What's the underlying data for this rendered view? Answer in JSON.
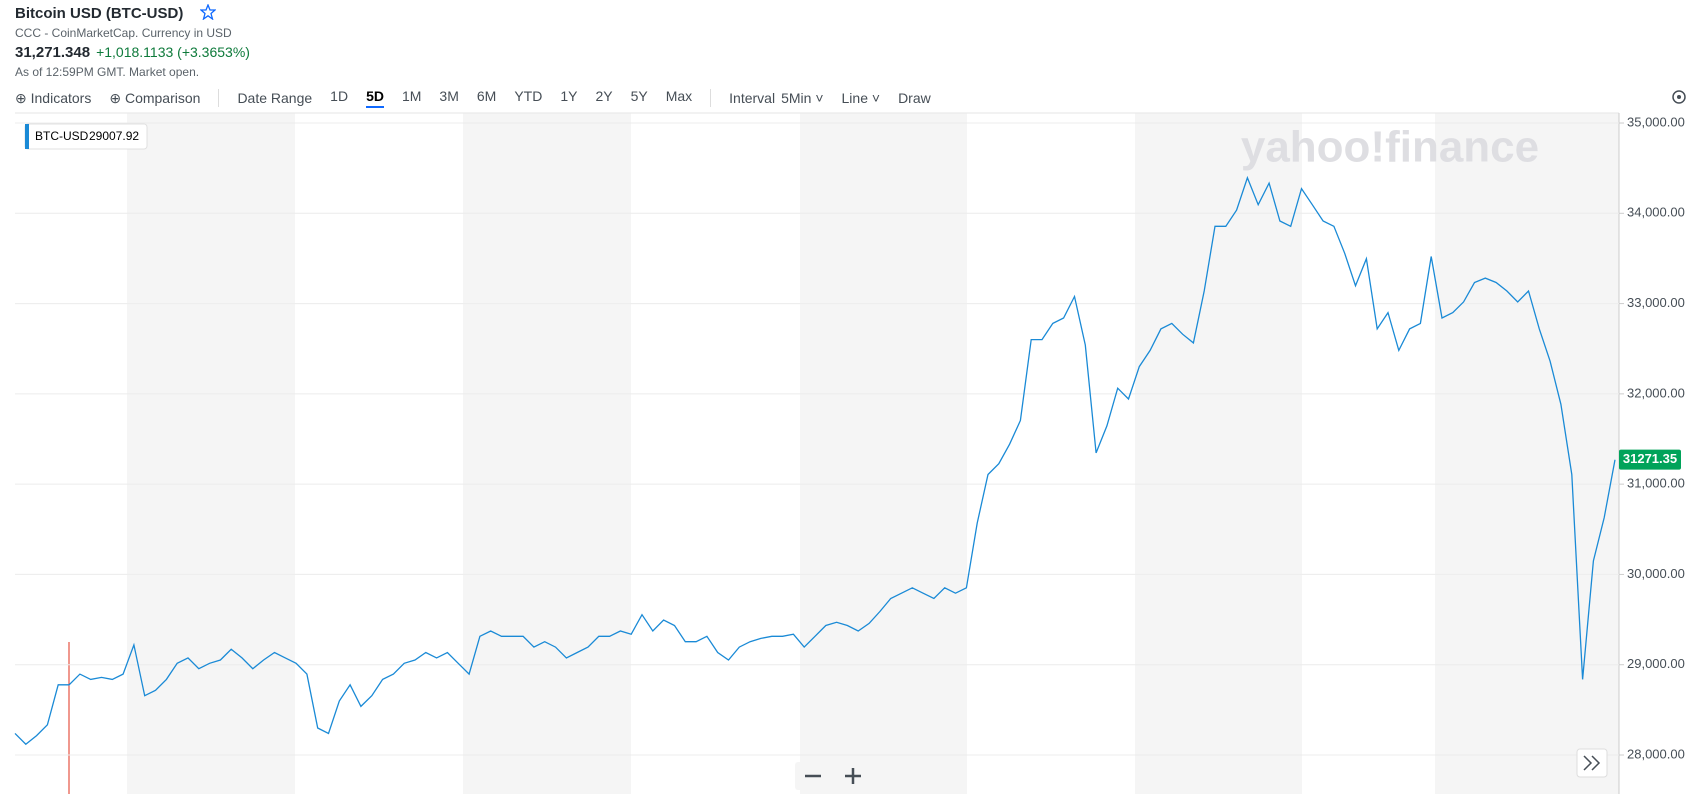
{
  "header": {
    "title": "Bitcoin USD (BTC-USD)",
    "subtitle": "CCC - CoinMarketCap. Currency in USD",
    "price": "31,271.348",
    "change": "+1,018.1133 (+3.3653%)",
    "as_of": "As of 12:59PM GMT. Market open."
  },
  "toolbar": {
    "indicators": "Indicators",
    "comparison": "Comparison",
    "date_range": "Date Range",
    "ranges": [
      "1D",
      "5D",
      "1M",
      "3M",
      "6M",
      "YTD",
      "1Y",
      "2Y",
      "5Y",
      "Max"
    ],
    "interval_label": "Interval",
    "interval": "5Min",
    "chart_type": "Line",
    "draw": "Draw"
  },
  "chart_data": {
    "type": "line",
    "watermark": "yahoo!finance",
    "series": [
      {
        "name": "BTC-USD",
        "color": "#1a8ad6",
        "values": [
          28239,
          28120,
          28215,
          28335,
          28777,
          28777,
          28896,
          28837,
          28860,
          28837,
          28896,
          29219,
          28657,
          28717,
          28837,
          29016,
          29076,
          28956,
          29016,
          29052,
          29171,
          29076,
          28956,
          29052,
          29135,
          29076,
          29016,
          28896,
          28299,
          28239,
          28598,
          28777,
          28538,
          28657,
          28837,
          28896,
          29016,
          29052,
          29135,
          29076,
          29135,
          29016,
          28896,
          29315,
          29374,
          29315,
          29315,
          29315,
          29195,
          29255,
          29195,
          29076,
          29135,
          29195,
          29315,
          29315,
          29374,
          29338,
          29554,
          29374,
          29494,
          29434,
          29255,
          29255,
          29315,
          29135,
          29052,
          29195,
          29255,
          29291,
          29315,
          29315,
          29338,
          29195,
          29315,
          29434,
          29470,
          29434,
          29374,
          29458,
          29589,
          29733,
          29792,
          29852,
          29792,
          29733,
          29852,
          29792,
          29852,
          30569,
          31107,
          31227,
          31442,
          31705,
          32601,
          32601,
          32780,
          32840,
          33079,
          32541,
          31346,
          31645,
          32063,
          31943,
          32302,
          32481,
          32720,
          32780,
          32661,
          32565,
          33139,
          33856,
          33856,
          34035,
          34393,
          34095,
          34334,
          33915,
          33856,
          34274,
          34095,
          33915,
          33856,
          33557,
          33198,
          33497,
          32720,
          32900,
          32481,
          32720,
          32780,
          33521,
          32840,
          32900,
          33019,
          33234,
          33282,
          33234,
          33139,
          33019,
          33139,
          32720,
          32362,
          31884,
          31107,
          28837,
          30151,
          30629,
          31271
        ]
      }
    ],
    "ylim": [
      27568,
      35111
    ],
    "yticks": [
      {
        "value": 28000,
        "label": "28,000.00"
      },
      {
        "value": 29000,
        "label": "29,000.00"
      },
      {
        "value": 30000,
        "label": "30,000.00"
      },
      {
        "value": 31000,
        "label": "31,000.00"
      },
      {
        "value": 32000,
        "label": "32,000.00"
      },
      {
        "value": 33000,
        "label": "33,000.00"
      },
      {
        "value": 34000,
        "label": "34,000.00"
      },
      {
        "value": 35000,
        "label": "35,000.00"
      }
    ],
    "grid": true,
    "last_price": 31271.35,
    "last_price_color": "#00a35a",
    "tooltip_value": 29007.92
  }
}
